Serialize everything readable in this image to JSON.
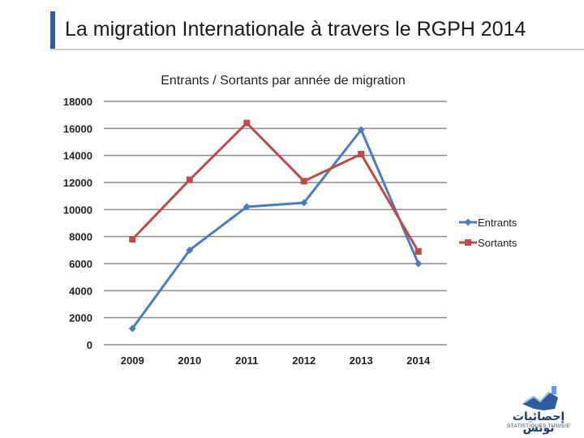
{
  "slide": {
    "title": "La migration Internationale à travers le RGPH 2014"
  },
  "colors": {
    "entrants": "#4a7ebb",
    "sortants": "#be4b48",
    "grid": "#8c8c8c",
    "accent": "#2e5c9e"
  },
  "logo": {
    "name_ar": "إحصائيات تونس",
    "name_fr": "STATISTIQUES TUNISIE"
  },
  "chart_data": {
    "type": "line",
    "title": "Entrants / Sortants par année de migration",
    "categories": [
      "2009",
      "2010",
      "2011",
      "2012",
      "2013",
      "2014"
    ],
    "series": [
      {
        "name": "Entrants",
        "marker": "diamond",
        "values": [
          1200,
          7000,
          10200,
          10500,
          15900,
          6000
        ]
      },
      {
        "name": "Sortants",
        "marker": "square",
        "values": [
          7800,
          12200,
          16400,
          12100,
          14100,
          6900
        ]
      }
    ],
    "ylim": [
      0,
      18000
    ],
    "yticks": [
      "0",
      "2000",
      "4000",
      "6000",
      "8000",
      "10000",
      "12000",
      "14000",
      "16000",
      "18000"
    ],
    "grid": true,
    "legend": "right"
  }
}
